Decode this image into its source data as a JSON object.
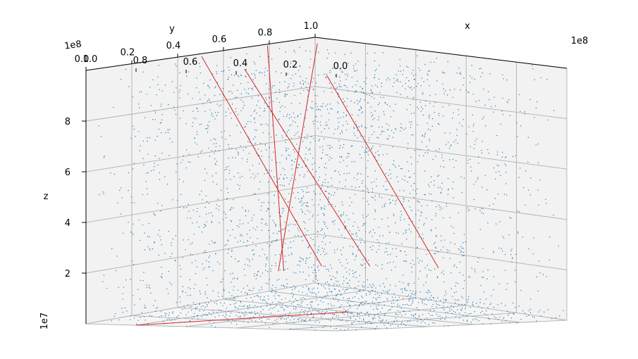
{
  "chart_data": {
    "type": "scatter",
    "projection": "3d",
    "colors": {
      "points": "#1f77b4",
      "lines": "#d62728"
    },
    "axes": {
      "x": {
        "label": "x",
        "offset_text": "1e8",
        "ticks": [
          0.0,
          0.2,
          0.4,
          0.6,
          0.8,
          1.0
        ],
        "tick_labels": [
          "0.0",
          "0.2",
          "0.4",
          "0.6",
          "0.8",
          "1.0"
        ],
        "range": [
          0,
          100000000.0
        ]
      },
      "y": {
        "label": "y",
        "offset_text": "1e8",
        "ticks": [
          0.0,
          0.2,
          0.4,
          0.6,
          0.8,
          1.0
        ],
        "tick_labels": [
          "0.0",
          "0.2",
          "0.4",
          "0.6",
          "0.8",
          "1.0"
        ],
        "range": [
          0,
          100000000.0
        ]
      },
      "z": {
        "label": "z",
        "offset_text": "1e7",
        "ticks": [
          2,
          4,
          6,
          8
        ],
        "tick_labels": [
          "2",
          "4",
          "6",
          "8"
        ],
        "range": [
          0,
          100000000.0
        ]
      }
    },
    "grid": true,
    "series": [
      {
        "kind": "scatter",
        "description_values": "dense uniform cloud filling the cube, slightly denser near center",
        "x_range": [
          0,
          100000000.0
        ],
        "y_range": [
          0,
          100000000.0
        ],
        "z_range": [
          0,
          100000000.0
        ]
      },
      {
        "kind": "lines",
        "segments": [
          {
            "start": [
              10000000.0,
              13000000.0,
              100000000.0
            ],
            "end": [
              88000000.0,
              40000000.0,
              16000000.0
            ]
          },
          {
            "start": [
              20000000.0,
              55000000.0,
              100000000.0
            ],
            "end": [
              80000000.0,
              60000000.0,
              15000000.0
            ]
          },
          {
            "start": [
              45000000.0,
              95000000.0,
              100000000.0
            ],
            "end": [
              70000000.0,
              70000000.0,
              15000000.0
            ]
          },
          {
            "start": [
              77000000.0,
              98000000.0,
              100000000.0
            ],
            "end": [
              60000000.0,
              76000000.0,
              14000000.0
            ]
          },
          {
            "start": [
              90000000.0,
              90000000.0,
              100000000.0
            ],
            "end": [
              62000000.0,
              80000000.0,
              13000000.0
            ]
          },
          {
            "start": [
              60000000.0,
              50000000.0,
              0.0
            ],
            "end": [
              0.0,
              80000000.0,
              0.0
            ]
          }
        ]
      }
    ]
  }
}
